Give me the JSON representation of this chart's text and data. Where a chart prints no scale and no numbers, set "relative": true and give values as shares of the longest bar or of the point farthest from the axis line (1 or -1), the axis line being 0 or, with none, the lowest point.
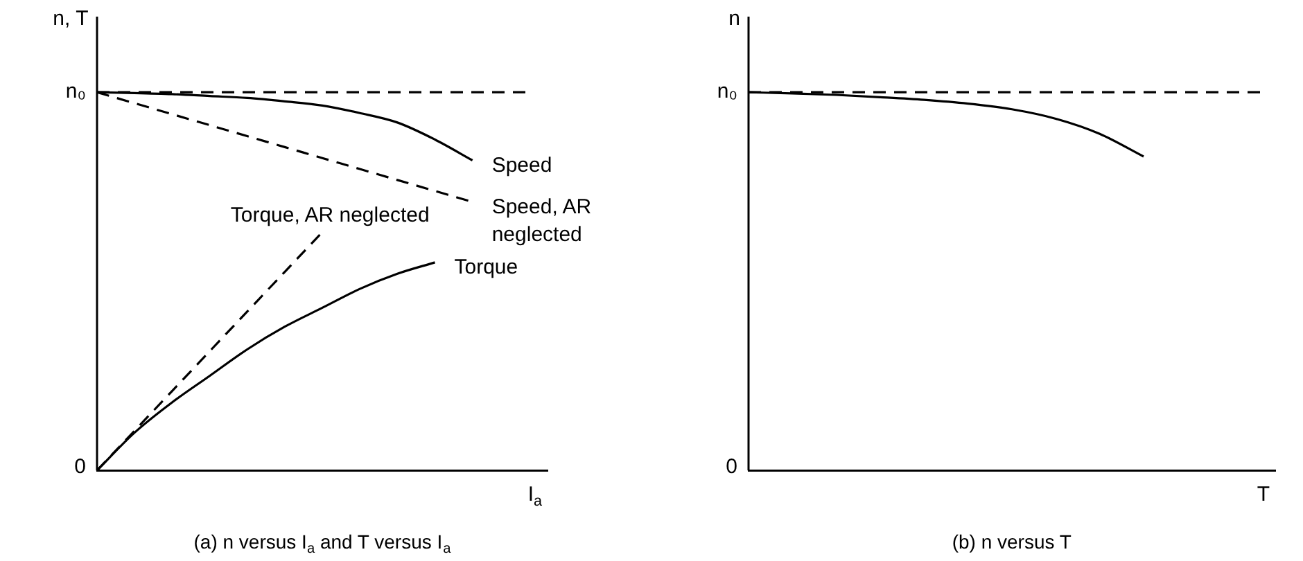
{
  "chart_data": [
    {
      "type": "line",
      "title": "(a) n versus I$_{a}$ and T versus I$_{a}$",
      "xlabel": "I$_{a}$",
      "ylabel": "n, T",
      "categories": [
        null,
        null,
        null,
        null,
        null,
        null,
        null,
        null,
        null,
        null,
        null,
        null,
        null
      ],
      "series": [
        {
          "name": "Speed",
          "color": "#000000",
          "line_style": "solid",
          "values": [
            1,
            0.998,
            0.995,
            0.99,
            0.985,
            0.976,
            0.965,
            0.945,
            0.92,
            0.875,
            0.82,
            null,
            null
          ]
        },
        {
          "name": "Speed, AR neglected",
          "color": "#000000",
          "line_style": "dashed",
          "values": [
            1,
            0.971,
            0.942,
            0.913,
            0.884,
            0.855,
            0.826,
            0.797,
            0.768,
            0.739,
            0.71,
            null,
            null
          ]
        },
        {
          "name": "Torque",
          "color": "#000000",
          "line_style": "solid",
          "values": [
            0,
            0.1,
            0.18,
            0.25,
            0.32,
            0.38,
            0.43,
            0.48,
            0.52,
            0.55,
            null,
            null,
            null
          ]
        },
        {
          "name": "Torque, AR neglected",
          "color": "#000000",
          "line_style": "dashed",
          "values": [
            0,
            0.105,
            0.21,
            0.315,
            0.42,
            0.525,
            0.63,
            null,
            null,
            null,
            null,
            null,
            null
          ]
        }
      ],
      "relative": true,
      "ref_lines": [
        {
          "axis": "y",
          "value": 1,
          "label": "n₀",
          "color": "#000000",
          "line_style": "dashed"
        }
      ],
      "annotations": [
        "0"
      ],
      "grid": false,
      "marker": "none"
    },
    {
      "type": "line",
      "title": "(b) n versus T",
      "xlabel": "T",
      "ylabel": "n",
      "categories": [
        null,
        null,
        null,
        null,
        null,
        null,
        null,
        null,
        null,
        null,
        null,
        null,
        null
      ],
      "series": [
        {
          "color": "#000000",
          "line_style": "solid",
          "values": [
            1,
            0.997,
            0.993,
            0.987,
            0.98,
            0.97,
            0.955,
            0.93,
            0.89,
            0.83,
            null,
            null,
            null
          ]
        }
      ],
      "relative": true,
      "ref_lines": [
        {
          "axis": "y",
          "value": 1,
          "label": "n₀",
          "color": "#000000",
          "line_style": "dashed"
        }
      ],
      "annotations": [
        "0"
      ],
      "grid": false,
      "marker": "none"
    }
  ]
}
